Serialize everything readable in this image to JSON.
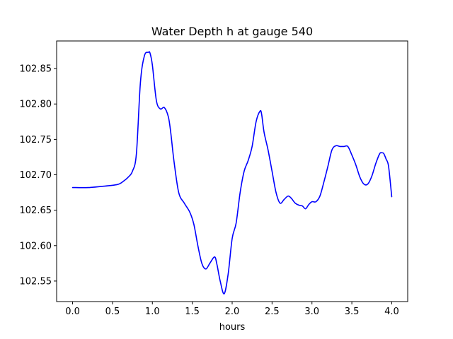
{
  "chart_data": {
    "type": "line",
    "title": "Water Depth h at gauge 540",
    "xlabel": "hours",
    "ylabel": "",
    "xlim": [
      -0.2,
      4.2
    ],
    "ylim": [
      102.521,
      102.889
    ],
    "grid": false,
    "legend": "none",
    "x_ticks": [
      0.0,
      0.5,
      1.0,
      1.5,
      2.0,
      2.5,
      3.0,
      3.5,
      4.0
    ],
    "x_tick_labels": [
      "0.0",
      "0.5",
      "1.0",
      "1.5",
      "2.0",
      "2.5",
      "3.0",
      "3.5",
      "4.0"
    ],
    "y_ticks": [
      102.55,
      102.6,
      102.65,
      102.7,
      102.75,
      102.8,
      102.85
    ],
    "y_tick_labels": [
      "102.55",
      "102.60",
      "102.65",
      "102.70",
      "102.75",
      "102.80",
      "102.85"
    ],
    "series": [
      {
        "color": "#0000ff",
        "x": [
          0.0,
          0.2,
          0.4,
          0.55,
          0.6,
          0.65,
          0.7,
          0.75,
          0.8,
          0.85,
          0.9,
          0.95,
          0.97,
          1.0,
          1.05,
          1.1,
          1.15,
          1.2,
          1.23,
          1.27,
          1.33,
          1.4,
          1.47,
          1.52,
          1.57,
          1.62,
          1.67,
          1.72,
          1.78,
          1.81,
          1.85,
          1.9,
          1.95,
          2.0,
          2.05,
          2.1,
          2.15,
          2.2,
          2.25,
          2.3,
          2.35,
          2.37,
          2.4,
          2.45,
          2.5,
          2.55,
          2.6,
          2.65,
          2.7,
          2.74,
          2.79,
          2.84,
          2.88,
          2.92,
          2.96,
          3.0,
          3.05,
          3.1,
          3.15,
          3.2,
          3.25,
          3.3,
          3.35,
          3.4,
          3.45,
          3.5,
          3.55,
          3.6,
          3.65,
          3.7,
          3.75,
          3.8,
          3.85,
          3.88,
          3.9,
          3.93,
          3.96,
          4.0
        ],
        "y": [
          102.682,
          102.682,
          102.684,
          102.686,
          102.688,
          102.692,
          102.697,
          102.705,
          102.73,
          102.83,
          102.868,
          102.873,
          102.872,
          102.855,
          102.805,
          102.793,
          102.795,
          102.782,
          102.76,
          102.72,
          102.675,
          102.66,
          102.647,
          102.63,
          102.6,
          102.575,
          102.567,
          102.575,
          102.584,
          102.573,
          102.55,
          102.532,
          102.56,
          102.61,
          102.632,
          102.675,
          102.705,
          102.72,
          102.74,
          102.775,
          102.79,
          102.785,
          102.76,
          102.735,
          102.705,
          102.675,
          102.66,
          102.665,
          102.67,
          102.667,
          102.66,
          102.657,
          102.656,
          102.652,
          102.658,
          102.662,
          102.662,
          102.67,
          102.69,
          102.712,
          102.735,
          102.741,
          102.74,
          102.74,
          102.74,
          102.728,
          102.714,
          102.697,
          102.687,
          102.687,
          102.698,
          102.716,
          102.73,
          102.731,
          102.73,
          102.722,
          102.712,
          102.669
        ]
      }
    ]
  }
}
